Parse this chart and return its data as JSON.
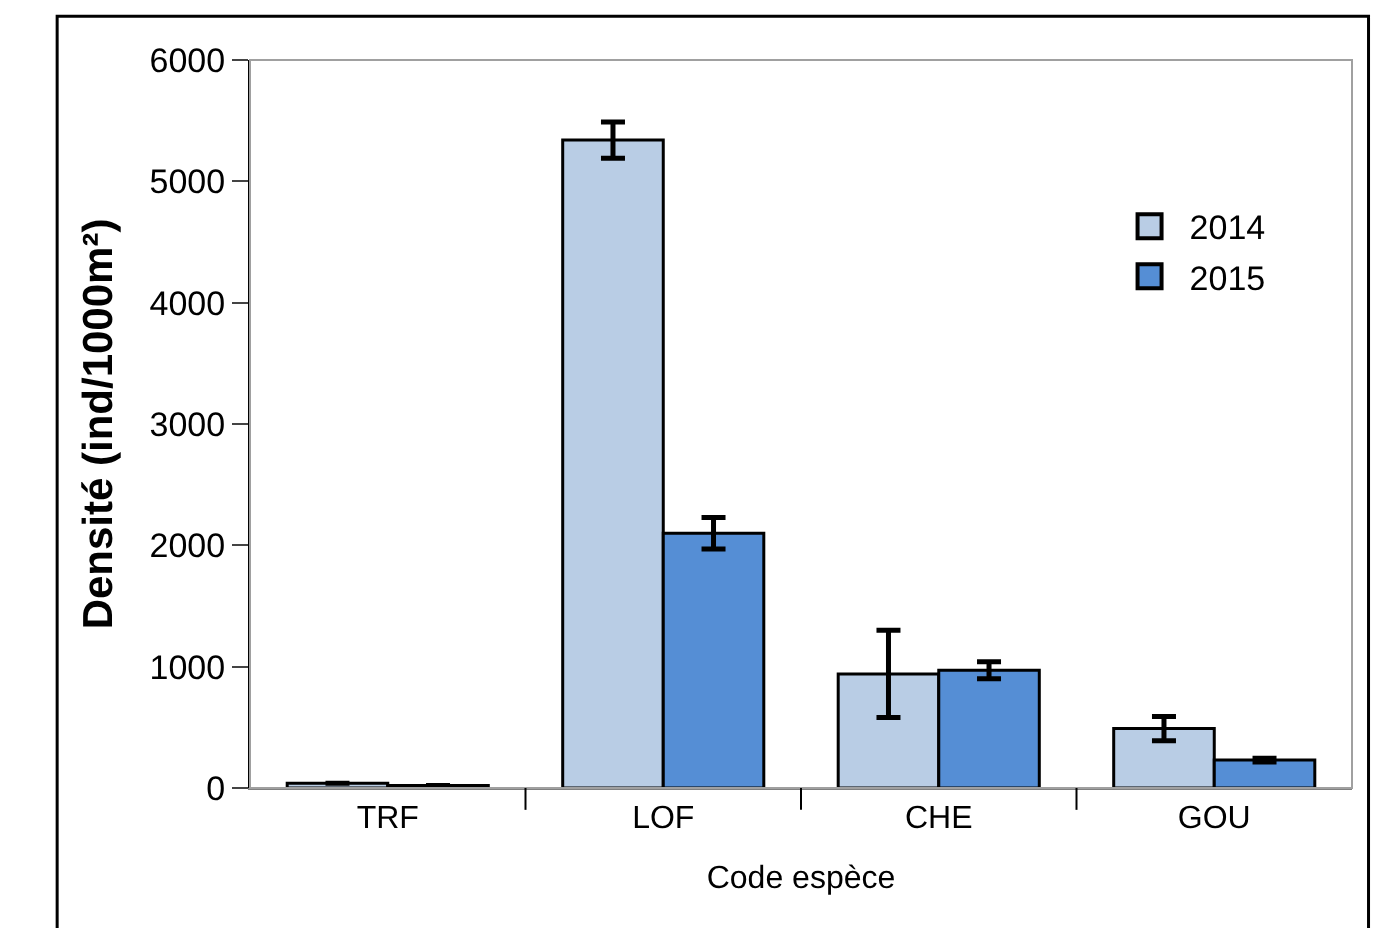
{
  "chart_data": {
    "type": "bar",
    "xlabel": "Code espèce",
    "ylabel": "Densité (ind/1000m²)",
    "categories": [
      "TRF",
      "LOF",
      "CHE",
      "GOU"
    ],
    "series": [
      {
        "name": "2014",
        "color": "#b9cde5",
        "values": [
          40,
          5340,
          940,
          490
        ],
        "errors": [
          null,
          150,
          360,
          100
        ]
      },
      {
        "name": "2015",
        "color": "#558ed5",
        "values": [
          20,
          2100,
          970,
          230
        ],
        "errors": [
          null,
          130,
          70,
          15
        ]
      }
    ],
    "ylim": [
      0,
      6000
    ],
    "yticks": [
      0,
      1000,
      2000,
      3000,
      4000,
      5000,
      6000
    ],
    "legend": "top right"
  }
}
